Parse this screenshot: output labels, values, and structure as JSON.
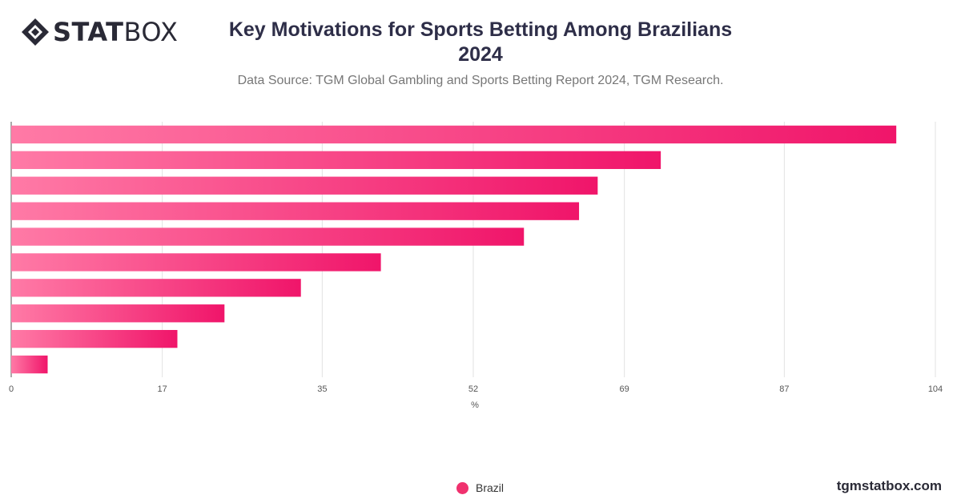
{
  "brand": {
    "logo_bold": "STAT",
    "logo_light": "BOX",
    "site": "tgmstatbox.com"
  },
  "title_line1": "Key Motivations for Sports Betting Among Brazilians",
  "title_line2": "2024",
  "subtitle": "Data Source: TGM Global Gambling and Sports Betting Report 2024, TGM Research.",
  "colors": {
    "bar_start": "#ff7aa6",
    "bar_end": "#f0156a",
    "grid": "#e2e2e2",
    "axis": "#555555"
  },
  "chart_data": {
    "type": "bar",
    "orientation": "horizontal",
    "categories": [
      "",
      "",
      "",
      "",
      "",
      "",
      "",
      "",
      "",
      ""
    ],
    "series": [
      {
        "name": "Brazil",
        "values": [
          99.6,
          73.1,
          66.0,
          63.9,
          57.7,
          41.6,
          32.6,
          24.0,
          18.7,
          4.1
        ]
      }
    ],
    "xlabel": "%",
    "xlim": [
      0,
      104
    ],
    "xticks": [
      0,
      17,
      35,
      52,
      69,
      87,
      104
    ],
    "grid": true,
    "legend": "bottom-center"
  }
}
